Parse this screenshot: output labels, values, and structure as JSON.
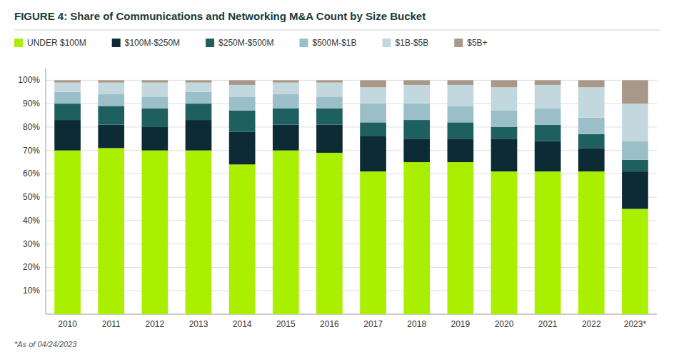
{
  "chart_data": {
    "type": "bar",
    "stacked": true,
    "title": "FIGURE 4:  Share of Communications and Networking M&A Count by Size Bucket",
    "annotations": [
      "*As of 04/24/2023"
    ],
    "categories": [
      "2010",
      "2011",
      "2012",
      "2013",
      "2014",
      "2015",
      "2016",
      "2017",
      "2018",
      "2019",
      "2020",
      "2021",
      "2022",
      "2023*"
    ],
    "series": [
      {
        "name": "UNDER $100M",
        "color": "#aaee00",
        "values": [
          0.7,
          0.71,
          0.7,
          0.7,
          0.64,
          0.7,
          0.69,
          0.61,
          0.65,
          0.65,
          0.61,
          0.61,
          0.61,
          0.45
        ]
      },
      {
        "name": "$100M-$250M",
        "color": "#0d2b35",
        "values": [
          0.13,
          0.1,
          0.1,
          0.13,
          0.14,
          0.11,
          0.12,
          0.15,
          0.1,
          0.1,
          0.14,
          0.13,
          0.1,
          0.16
        ]
      },
      {
        "name": "$250M-$500M",
        "color": "#1e5f5f",
        "values": [
          0.07,
          0.08,
          0.08,
          0.07,
          0.09,
          0.07,
          0.07,
          0.06,
          0.08,
          0.07,
          0.05,
          0.07,
          0.06,
          0.05
        ]
      },
      {
        "name": "$500M-$1B",
        "color": "#9bbfc8",
        "values": [
          0.05,
          0.05,
          0.05,
          0.05,
          0.06,
          0.06,
          0.05,
          0.08,
          0.07,
          0.07,
          0.07,
          0.07,
          0.07,
          0.08
        ]
      },
      {
        "name": "$1B-$5B",
        "color": "#c2d8de",
        "values": [
          0.04,
          0.05,
          0.06,
          0.04,
          0.05,
          0.05,
          0.06,
          0.07,
          0.08,
          0.09,
          0.1,
          0.1,
          0.13,
          0.16
        ]
      },
      {
        "name": "$5B+",
        "color": "#a89888",
        "values": [
          0.01,
          0.01,
          0.01,
          0.01,
          0.02,
          0.01,
          0.01,
          0.03,
          0.02,
          0.02,
          0.03,
          0.02,
          0.03,
          0.1
        ]
      }
    ],
    "ylim": [
      0,
      1.05
    ],
    "yticks": [
      {
        "value": 0.1,
        "label": "10%"
      },
      {
        "value": 0.2,
        "label": "20%"
      },
      {
        "value": 0.3,
        "label": "30%"
      },
      {
        "value": 0.4,
        "label": "40%"
      },
      {
        "value": 0.5,
        "label": "50%"
      },
      {
        "value": 0.6,
        "label": "60%"
      },
      {
        "value": 0.7,
        "label": "70%"
      },
      {
        "value": 0.8,
        "label": "80%"
      },
      {
        "value": 0.9,
        "label": "90%"
      },
      {
        "value": 1.0,
        "label": "100%"
      }
    ],
    "grid": true,
    "legend": "top"
  }
}
